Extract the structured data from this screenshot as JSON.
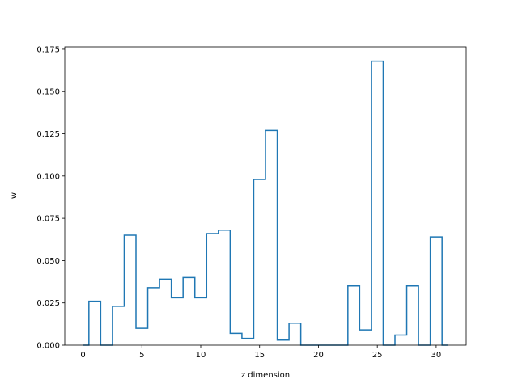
{
  "chart_data": {
    "type": "line",
    "step": "mid",
    "title": "",
    "xlabel": "z dimension",
    "ylabel": "w",
    "xlim": [
      -1.55,
      32.55
    ],
    "ylim": [
      0,
      0.1764
    ],
    "xticks": [
      0,
      5,
      10,
      15,
      20,
      25,
      30
    ],
    "yticks": [
      0.0,
      0.025,
      0.05,
      0.075,
      0.1,
      0.125,
      0.15,
      0.175
    ],
    "ytick_labels": [
      "0.000",
      "0.025",
      "0.050",
      "0.075",
      "0.100",
      "0.125",
      "0.150",
      "0.175"
    ],
    "grid": false,
    "color": "#1f77b4",
    "x": [
      0,
      1,
      2,
      3,
      4,
      5,
      6,
      7,
      8,
      9,
      10,
      11,
      12,
      13,
      14,
      15,
      16,
      17,
      18,
      19,
      20,
      21,
      22,
      23,
      24,
      25,
      26,
      27,
      28,
      29,
      30,
      31
    ],
    "values": [
      0.0,
      0.026,
      0.0,
      0.023,
      0.065,
      0.01,
      0.034,
      0.039,
      0.028,
      0.04,
      0.028,
      0.066,
      0.068,
      0.007,
      0.004,
      0.098,
      0.127,
      0.003,
      0.013,
      0.0,
      0.0,
      0.0,
      0.0,
      0.035,
      0.009,
      0.168,
      0.0,
      0.006,
      0.035,
      0.0,
      0.064,
      0.0
    ]
  }
}
